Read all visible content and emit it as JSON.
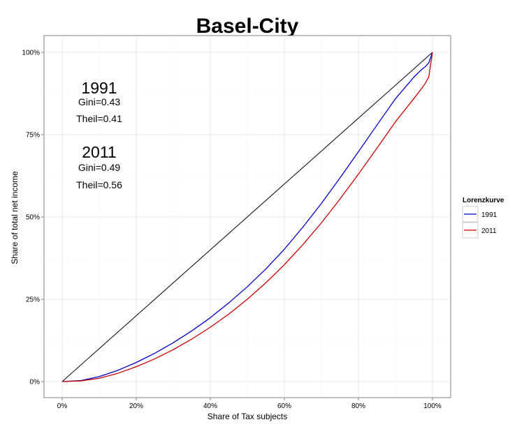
{
  "chart_data": {
    "type": "line",
    "title": "Basel-City",
    "xlabel": "Share of Tax subjects",
    "ylabel": "Share of total net income",
    "xlim": [
      0,
      100
    ],
    "ylim": [
      0,
      100
    ],
    "x_ticks": [
      "0%",
      "20%",
      "40%",
      "60%",
      "80%",
      "100%"
    ],
    "y_ticks": [
      "0%",
      "25%",
      "50%",
      "75%",
      "100%"
    ],
    "grid": true,
    "legend": {
      "title": "Lorenzkurve",
      "placement": "right"
    },
    "equality_line": {
      "x": [
        0,
        100
      ],
      "y": [
        0,
        100
      ],
      "color": "#000000"
    },
    "series": [
      {
        "name": "1991",
        "color": "#0000cc",
        "x": [
          0,
          5,
          10,
          15,
          20,
          25,
          30,
          35,
          40,
          45,
          50,
          55,
          60,
          65,
          70,
          75,
          80,
          85,
          90,
          95,
          97,
          98,
          99,
          100
        ],
        "y": [
          0,
          0.3,
          1.5,
          3.4,
          5.8,
          8.6,
          11.8,
          15.4,
          19.4,
          23.9,
          28.8,
          34.2,
          40.2,
          46.9,
          54.1,
          61.8,
          69.8,
          77.9,
          85.9,
          92.5,
          94.7,
          95.6,
          96.8,
          100
        ]
      },
      {
        "name": "2011",
        "color": "#cc0000",
        "x": [
          0,
          5,
          10,
          15,
          20,
          25,
          30,
          35,
          40,
          45,
          50,
          55,
          60,
          65,
          70,
          75,
          80,
          85,
          90,
          95,
          97,
          98,
          99,
          100
        ],
        "y": [
          0,
          0.2,
          1.0,
          2.5,
          4.5,
          6.9,
          9.7,
          12.9,
          16.5,
          20.5,
          25.0,
          30.0,
          35.5,
          41.6,
          48.2,
          55.4,
          63.0,
          70.9,
          78.9,
          86.0,
          88.9,
          90.5,
          92.5,
          100
        ]
      }
    ],
    "annotations": [
      {
        "year": "1991",
        "gini": "Gini=0.43",
        "theil": "Theil=0.41"
      },
      {
        "year": "2011",
        "gini": "Gini=0.49",
        "theil": "Theil=0.56"
      }
    ]
  }
}
